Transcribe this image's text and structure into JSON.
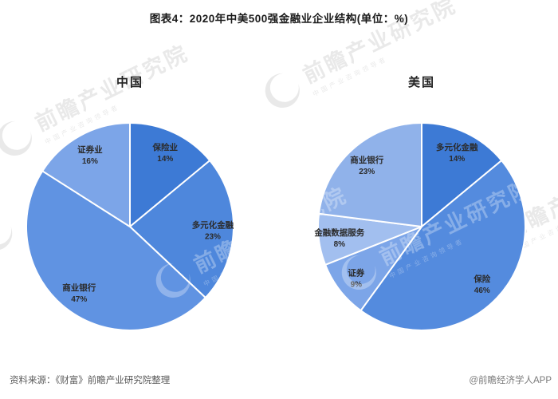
{
  "page": {
    "title": "图表4：2020年中美500强金融业企业结构(单位：%)"
  },
  "footer": {
    "source": "资料来源：《财富》前瞻产业研究院整理",
    "credit": "@前瞻经济学人APP"
  },
  "watermark": {
    "text": "前瞻产业研究院",
    "subtext": "中国产业咨询领导者"
  },
  "chart_data": [
    {
      "type": "pie",
      "title": "中国",
      "labels": [
        "保险业",
        "多元化金融",
        "商业银行",
        "证券业"
      ],
      "values": [
        14,
        23,
        47,
        16
      ],
      "unit": "%",
      "colors": [
        "#3D7AD5",
        "#4E87DC",
        "#6093E2",
        "#7CA5E8"
      ],
      "start_angle": 0,
      "direction": "clockwise",
      "label_position": "inside",
      "legend": "none"
    },
    {
      "type": "pie",
      "title": "美国",
      "labels": [
        "多元化金融",
        "保险",
        "证券",
        "金融数据服务",
        "商业银行"
      ],
      "values": [
        14,
        46,
        9,
        8,
        23
      ],
      "unit": "%",
      "colors": [
        "#3D7AD5",
        "#548BDE",
        "#7CA5E8",
        "#A2BFEF",
        "#90B2EA"
      ],
      "start_angle": 0,
      "direction": "clockwise",
      "label_position": "inside",
      "legend": "none"
    }
  ]
}
